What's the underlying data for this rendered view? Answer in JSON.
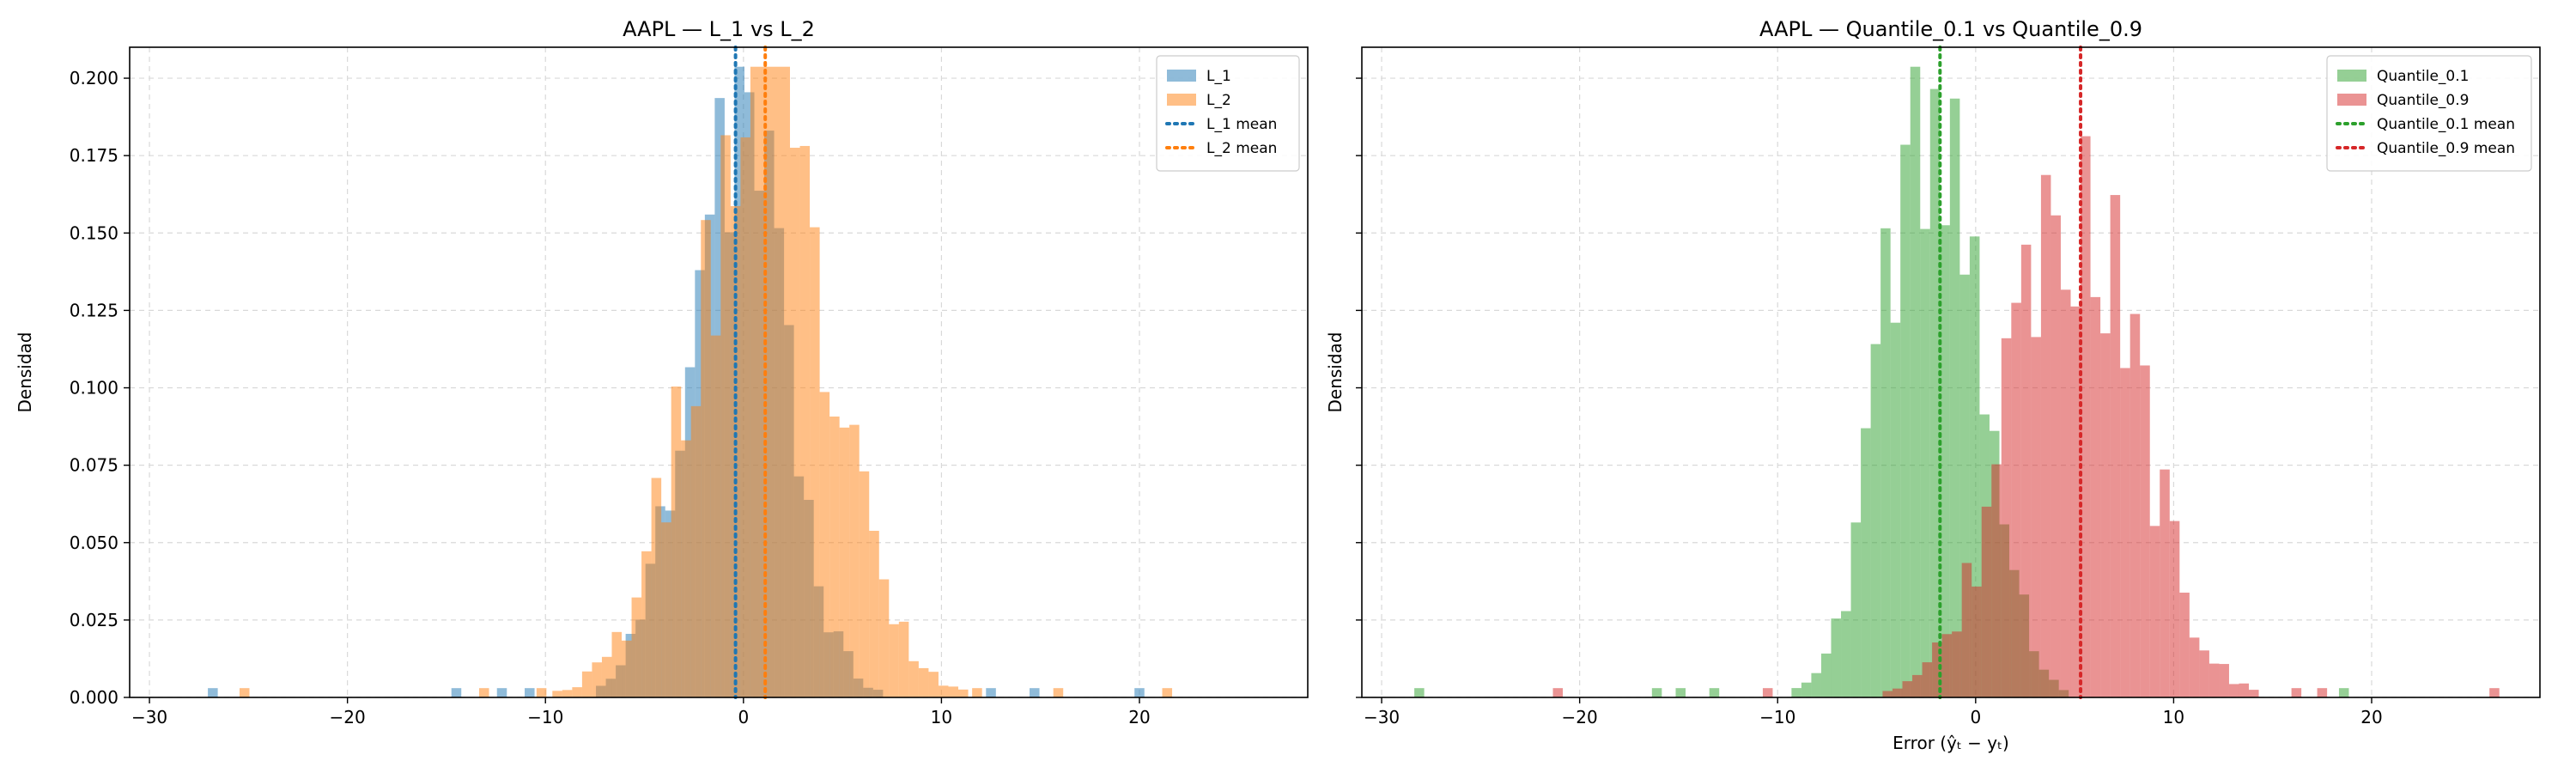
{
  "chart_data": [
    {
      "type": "histogram",
      "title": "AAPL — L_1 vs L_2",
      "xlabel": "",
      "ylabel": "Densidad",
      "xlim": [
        -31,
        28.5
      ],
      "ylim": [
        0,
        0.21
      ],
      "xticks": [
        -30,
        -20,
        -10,
        0,
        10,
        20
      ],
      "yticks": [
        0.0,
        0.025,
        0.05,
        0.075,
        0.1,
        0.125,
        0.15,
        0.175,
        0.2
      ],
      "xtick_labels": [
        "−30",
        "−20",
        "−10",
        "0",
        "10",
        "20"
      ],
      "ytick_labels": [
        "0.000",
        "0.025",
        "0.050",
        "0.075",
        "0.100",
        "0.125",
        "0.150",
        "0.175",
        "0.200"
      ],
      "grid": true,
      "legend_position": "top-right",
      "series": [
        {
          "name": "L_1",
          "mean": -0.4,
          "color": "#1f77b4",
          "center": -0.4,
          "sigma": 2.4,
          "peak": 0.195,
          "seed": 11
        },
        {
          "name": "L_2",
          "mean": 1.1,
          "color": "#ff7f0e",
          "center": 0.9,
          "sigma": 3.4,
          "peak": 0.185,
          "seed": 23
        }
      ],
      "mean_lines": [
        {
          "name": "L_1 mean",
          "x": -0.4,
          "color": "#1f77b4"
        },
        {
          "name": "L_2 mean",
          "x": 1.1,
          "color": "#ff7f0e"
        }
      ],
      "outliers": [
        {
          "x": -26.8,
          "series": 0,
          "h": 0.003
        },
        {
          "x": -25.2,
          "series": 1,
          "h": 0.003
        },
        {
          "x": -14.5,
          "series": 0,
          "h": 0.003
        },
        {
          "x": -13.1,
          "series": 1,
          "h": 0.003
        },
        {
          "x": -12.2,
          "series": 0,
          "h": 0.003
        },
        {
          "x": -10.8,
          "series": 0,
          "h": 0.003
        },
        {
          "x": -10.2,
          "series": 1,
          "h": 0.003
        },
        {
          "x": 11.8,
          "series": 1,
          "h": 0.003
        },
        {
          "x": 12.5,
          "series": 0,
          "h": 0.003
        },
        {
          "x": 14.7,
          "series": 0,
          "h": 0.003
        },
        {
          "x": 15.9,
          "series": 1,
          "h": 0.003
        },
        {
          "x": 20.0,
          "series": 0,
          "h": 0.003
        },
        {
          "x": 21.4,
          "series": 1,
          "h": 0.003
        }
      ]
    },
    {
      "type": "histogram",
      "title": "AAPL — Quantile_0.1 vs Quantile_0.9",
      "xlabel": "Error (ŷₜ − yₜ)",
      "ylabel": "Densidad",
      "xlim": [
        -31,
        28.5
      ],
      "ylim": [
        0,
        0.21
      ],
      "xticks": [
        -30,
        -20,
        -10,
        0,
        10,
        20
      ],
      "yticks": [
        0.0,
        0.025,
        0.05,
        0.075,
        0.1,
        0.125,
        0.15,
        0.175,
        0.2
      ],
      "xtick_labels": [
        "−30",
        "−20",
        "−10",
        "0",
        "10",
        "20"
      ],
      "ytick_labels": [],
      "grid": true,
      "legend_position": "top-right",
      "series": [
        {
          "name": "Quantile_0.1",
          "mean": -1.8,
          "color": "#2ca02c",
          "center": -2.2,
          "sigma": 2.3,
          "peak": 0.2,
          "seed": 37
        },
        {
          "name": "Quantile_0.9",
          "mean": 5.3,
          "color": "#d62728",
          "center": 5.0,
          "sigma": 3.1,
          "peak": 0.17,
          "seed": 53
        }
      ],
      "mean_lines": [
        {
          "name": "Quantile_0.1 mean",
          "x": -1.8,
          "color": "#2ca02c"
        },
        {
          "name": "Quantile_0.9 mean",
          "x": 5.3,
          "color": "#d62728"
        }
      ],
      "outliers": [
        {
          "x": -28.1,
          "series": 0,
          "h": 0.003
        },
        {
          "x": -21.1,
          "series": 1,
          "h": 0.003
        },
        {
          "x": -16.1,
          "series": 0,
          "h": 0.003
        },
        {
          "x": -14.9,
          "series": 0,
          "h": 0.003
        },
        {
          "x": -13.2,
          "series": 0,
          "h": 0.003
        },
        {
          "x": -10.5,
          "series": 1,
          "h": 0.003
        },
        {
          "x": 16.2,
          "series": 1,
          "h": 0.003
        },
        {
          "x": 17.5,
          "series": 1,
          "h": 0.003
        },
        {
          "x": 18.6,
          "series": 0,
          "h": 0.003
        },
        {
          "x": 26.2,
          "series": 1,
          "h": 0.003
        }
      ]
    }
  ]
}
